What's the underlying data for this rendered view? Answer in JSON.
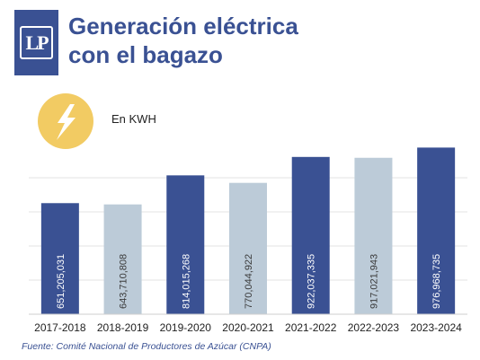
{
  "header": {
    "logo_text": "LP",
    "title_line1": "Generación eléctrica",
    "title_line2": "con el bagazo"
  },
  "unit_label": "En KWH",
  "colors": {
    "brand_blue": "#3a5193",
    "bar_light": "#bccbd8",
    "bolt_circle": "#f2cb63"
  },
  "icons": {
    "bolt": "lightning-bolt-icon"
  },
  "chart_data": {
    "type": "bar",
    "categories": [
      "2017-2018",
      "2018-2019",
      "2019-2020",
      "2020-2021",
      "2021-2022",
      "2022-2023",
      "2023-2024"
    ],
    "values": [
      651205031,
      643710808,
      814015268,
      770044922,
      922037335,
      917021943,
      976968735
    ],
    "value_labels": [
      "651,205,031",
      "643,710,808",
      "814,015,268",
      "770,044,922",
      "922,037,335",
      "917,021,943",
      "976,968,735"
    ],
    "bar_colors": [
      "#3a5193",
      "#bccbd8",
      "#3a5193",
      "#bccbd8",
      "#3a5193",
      "#bccbd8",
      "#3a5193"
    ],
    "ylim": [
      0,
      1000000000
    ],
    "grid": true,
    "legend": "none"
  },
  "source": "Fuente: Comité Nacional de Productores de Azúcar (CNPA)"
}
